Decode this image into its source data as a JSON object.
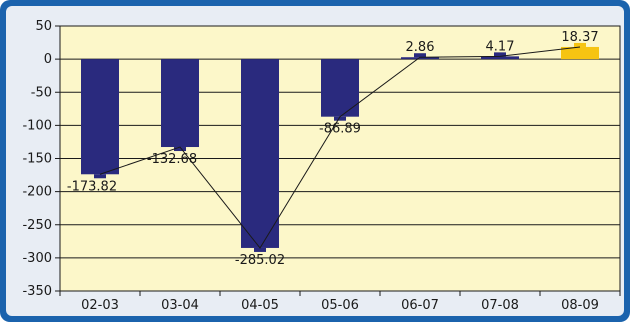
{
  "colors": {
    "frame": "#1b63ad",
    "background": "#e8edf4",
    "plot_area": "#fcf7c9",
    "bar_primary": "#2a2a7e",
    "bar_highlight": "#f6c412",
    "gridline": "#1a1a1a"
  },
  "chart_data": {
    "type": "bar",
    "categories": [
      "02-03",
      "03-04",
      "04-05",
      "05-06",
      "06-07",
      "07-08",
      "08-09"
    ],
    "series": [
      {
        "values": [
          -173.82,
          -132.68,
          -285.02,
          -86.89,
          2.86,
          4.17,
          18.37
        ],
        "labels": [
          "-173.82",
          "-132.68",
          "-285.02",
          "-86.89",
          "2.86",
          "4.17",
          "18.37"
        ]
      }
    ],
    "highlight_index": 6,
    "connecting_line": true,
    "ylim": [
      -350,
      50
    ],
    "yticks": [
      50,
      0,
      -50,
      -100,
      -150,
      -200,
      -250,
      -300,
      -350
    ],
    "ytick_labels": [
      "50",
      "0",
      "-50",
      "-100",
      "-150",
      "-200",
      "-250",
      "-300",
      "-350"
    ],
    "grid": true,
    "title": "",
    "xlabel": "",
    "ylabel": ""
  }
}
